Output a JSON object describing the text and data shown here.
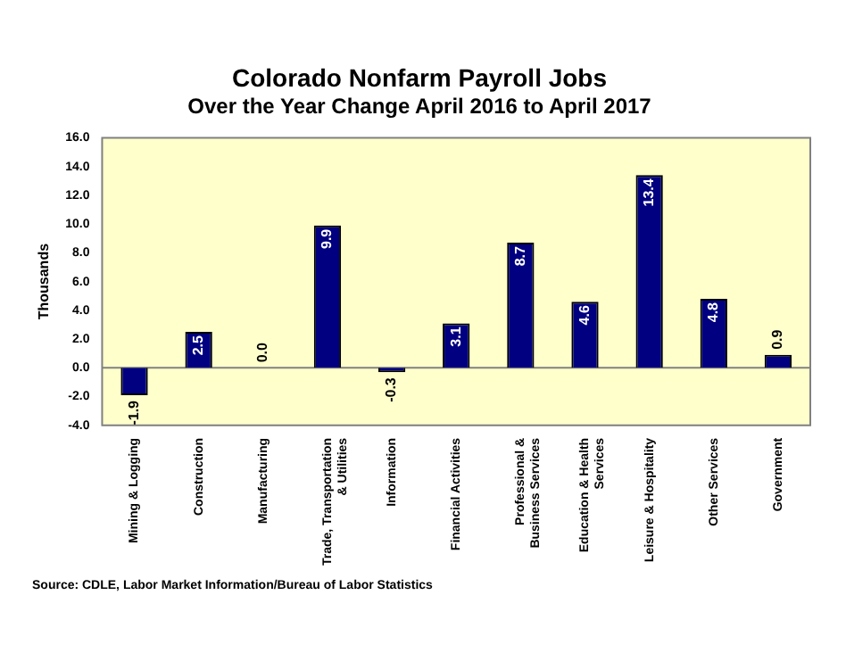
{
  "chart_data": {
    "type": "bar",
    "title": "Colorado Nonfarm Payroll Jobs",
    "subtitle": "Over the Year Change April 2016 to April 2017",
    "ylabel": "Thousands",
    "categories": [
      "Mining & Logging",
      "Construction",
      "Manufacturing",
      "Trade, Transportation & Utilities",
      "Information",
      "Financial Activities",
      "Professional & Business Services",
      "Education & Health Services",
      "Leisure & Hospitality",
      "Other Services",
      "Government"
    ],
    "values": [
      -1.9,
      2.5,
      0.0,
      9.9,
      -0.3,
      3.1,
      8.7,
      4.6,
      13.4,
      4.8,
      0.9
    ],
    "color": "#000080",
    "value_labels": [
      "-1.9",
      "2.5",
      "0.0",
      "9.9",
      "-0.3",
      "3.1",
      "8.7",
      "4.6",
      "13.4",
      "4.8",
      "0.9"
    ],
    "grid": false,
    "legend": false,
    "ref_lines": [
      {
        "axis": "y",
        "value": 0,
        "color": "#808080"
      }
    ],
    "ylim": [
      -4,
      16
    ],
    "yticks": [
      {
        "value": -4,
        "label": "-4.0"
      },
      {
        "value": -2,
        "label": "-2.0"
      },
      {
        "value": 0,
        "label": "0.0"
      },
      {
        "value": 2,
        "label": "2.0"
      },
      {
        "value": 4,
        "label": "4.0"
      },
      {
        "value": 6,
        "label": "6.0"
      },
      {
        "value": 8,
        "label": "8.0"
      },
      {
        "value": 10,
        "label": "10.0"
      },
      {
        "value": 12,
        "label": "12.0"
      },
      {
        "value": 14,
        "label": "14.0"
      },
      {
        "value": 16,
        "label": "16.0"
      }
    ],
    "annotations": [
      "Source: CDLE, Labor Market Information/Bureau of Labor Statistics"
    ]
  }
}
